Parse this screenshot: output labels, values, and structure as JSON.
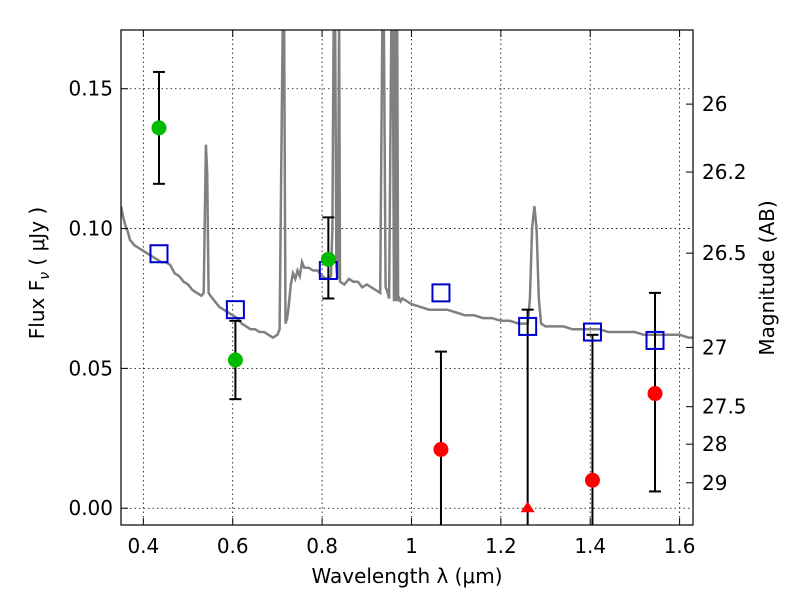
{
  "chart_data": {
    "type": "scatter",
    "title": "",
    "xlabel": "Wavelength  λ (μm)",
    "ylabel": "Flux  F",
    "ylabel_subscript": "ν",
    "ylabel_unit": " ( μJy )",
    "y2label": "Magnitude (AB)",
    "xlim": [
      0.35,
      1.63
    ],
    "ylim": [
      -0.006,
      0.171
    ],
    "x_ticks": [
      0.4,
      0.6,
      0.8,
      1.0,
      1.2,
      1.4,
      1.6
    ],
    "x_tick_labels": [
      "0.4",
      "0.6",
      "0.8",
      "1",
      "1.2",
      "1.4",
      "1.6"
    ],
    "y_ticks": [
      0.0,
      0.05,
      0.1,
      0.15
    ],
    "y_tick_labels": [
      "0.00",
      "0.05",
      "0.10",
      "0.15"
    ],
    "y2_ticks": [
      {
        "label": "26",
        "flux": 0.1445
      },
      {
        "label": "26.2",
        "flux": 0.1202
      },
      {
        "label": "26.5",
        "flux": 0.0912
      },
      {
        "label": "27",
        "flux": 0.0575
      },
      {
        "label": "27.5",
        "flux": 0.0363
      },
      {
        "label": "28",
        "flux": 0.0229
      },
      {
        "label": "29",
        "flux": 0.0091
      }
    ],
    "grid": true,
    "legend": "none",
    "colors": {
      "template": "#808080",
      "model": "#0000cc",
      "detected": "#00bb00",
      "undetected": "#ff0000",
      "errorbar": "#000000"
    },
    "template_spectrum": {
      "name": "",
      "x": [
        0.35,
        0.355,
        0.36,
        0.365,
        0.37,
        0.38,
        0.39,
        0.4,
        0.41,
        0.42,
        0.43,
        0.44,
        0.45,
        0.46,
        0.47,
        0.48,
        0.49,
        0.5,
        0.51,
        0.52,
        0.53,
        0.535,
        0.54,
        0.543,
        0.546,
        0.55,
        0.56,
        0.57,
        0.58,
        0.59,
        0.6,
        0.61,
        0.62,
        0.63,
        0.64,
        0.65,
        0.66,
        0.67,
        0.68,
        0.69,
        0.7,
        0.705,
        0.712,
        0.715,
        0.718,
        0.722,
        0.725,
        0.73,
        0.735,
        0.74,
        0.745,
        0.75,
        0.755,
        0.76,
        0.77,
        0.78,
        0.79,
        0.8,
        0.81,
        0.82,
        0.823,
        0.826,
        0.829,
        0.832,
        0.835,
        0.838,
        0.84,
        0.85,
        0.86,
        0.87,
        0.88,
        0.89,
        0.9,
        0.91,
        0.92,
        0.93,
        0.935,
        0.938,
        0.942,
        0.945,
        0.95,
        0.955,
        0.958,
        0.961,
        0.964,
        0.966,
        0.968,
        0.97,
        0.973,
        0.976,
        0.98,
        0.99,
        1.0,
        1.02,
        1.04,
        1.06,
        1.08,
        1.1,
        1.12,
        1.14,
        1.16,
        1.18,
        1.2,
        1.22,
        1.24,
        1.26,
        1.265,
        1.27,
        1.275,
        1.28,
        1.285,
        1.29,
        1.3,
        1.32,
        1.34,
        1.36,
        1.38,
        1.4,
        1.42,
        1.44,
        1.46,
        1.48,
        1.5,
        1.52,
        1.54,
        1.56,
        1.58,
        1.6,
        1.62,
        1.63
      ],
      "y": [
        0.108,
        0.104,
        0.101,
        0.099,
        0.096,
        0.094,
        0.093,
        0.092,
        0.091,
        0.09,
        0.089,
        0.088,
        0.088,
        0.087,
        0.084,
        0.083,
        0.081,
        0.08,
        0.078,
        0.077,
        0.076,
        0.077,
        0.13,
        0.12,
        0.077,
        0.076,
        0.074,
        0.072,
        0.071,
        0.07,
        0.069,
        0.068,
        0.066,
        0.065,
        0.064,
        0.064,
        0.063,
        0.063,
        0.062,
        0.061,
        0.062,
        0.064,
        0.176,
        0.176,
        0.066,
        0.068,
        0.072,
        0.08,
        0.084,
        0.082,
        0.085,
        0.083,
        0.088,
        0.086,
        0.086,
        0.085,
        0.085,
        0.083,
        0.082,
        0.083,
        0.1,
        0.176,
        0.176,
        0.086,
        0.082,
        0.176,
        0.081,
        0.08,
        0.082,
        0.081,
        0.081,
        0.079,
        0.08,
        0.079,
        0.078,
        0.077,
        0.176,
        0.176,
        0.079,
        0.078,
        0.075,
        0.176,
        0.176,
        0.074,
        0.176,
        0.074,
        0.176,
        0.074,
        0.075,
        0.074,
        0.075,
        0.074,
        0.073,
        0.072,
        0.071,
        0.071,
        0.071,
        0.07,
        0.069,
        0.069,
        0.068,
        0.068,
        0.067,
        0.067,
        0.066,
        0.066,
        0.075,
        0.1,
        0.108,
        0.1,
        0.075,
        0.066,
        0.065,
        0.065,
        0.065,
        0.064,
        0.064,
        0.064,
        0.064,
        0.063,
        0.063,
        0.063,
        0.063,
        0.062,
        0.062,
        0.062,
        0.062,
        0.062,
        0.061,
        0.061
      ]
    },
    "series": [
      {
        "marker": "square-open",
        "points": [
          {
            "x": 0.435,
            "y": 0.091
          },
          {
            "x": 0.606,
            "y": 0.071
          },
          {
            "x": 0.814,
            "y": 0.085
          },
          {
            "x": 1.066,
            "y": 0.077
          },
          {
            "x": 1.26,
            "y": 0.065
          },
          {
            "x": 1.405,
            "y": 0.063
          },
          {
            "x": 1.545,
            "y": 0.06
          }
        ]
      },
      {
        "marker": "circle",
        "points": [
          {
            "x": 0.435,
            "y": 0.136,
            "err_low": 0.116,
            "err_high": 0.156
          },
          {
            "x": 0.606,
            "y": 0.053,
            "err_low": 0.039,
            "err_high": 0.067
          },
          {
            "x": 0.814,
            "y": 0.089,
            "err_low": 0.075,
            "err_high": 0.104
          }
        ]
      },
      {
        "marker": "circle",
        "points": [
          {
            "x": 1.066,
            "y": 0.021,
            "err_low": -0.006,
            "err_high": 0.056
          },
          {
            "x": 1.405,
            "y": 0.01,
            "err_low": -0.006,
            "err_high": 0.062
          },
          {
            "x": 1.545,
            "y": 0.041,
            "err_low": 0.006,
            "err_high": 0.077
          }
        ]
      },
      {
        "marker": "triangle",
        "points": [
          {
            "x": 1.26,
            "y": 0.0,
            "err_low": -0.006,
            "err_high": 0.071
          }
        ]
      }
    ]
  }
}
